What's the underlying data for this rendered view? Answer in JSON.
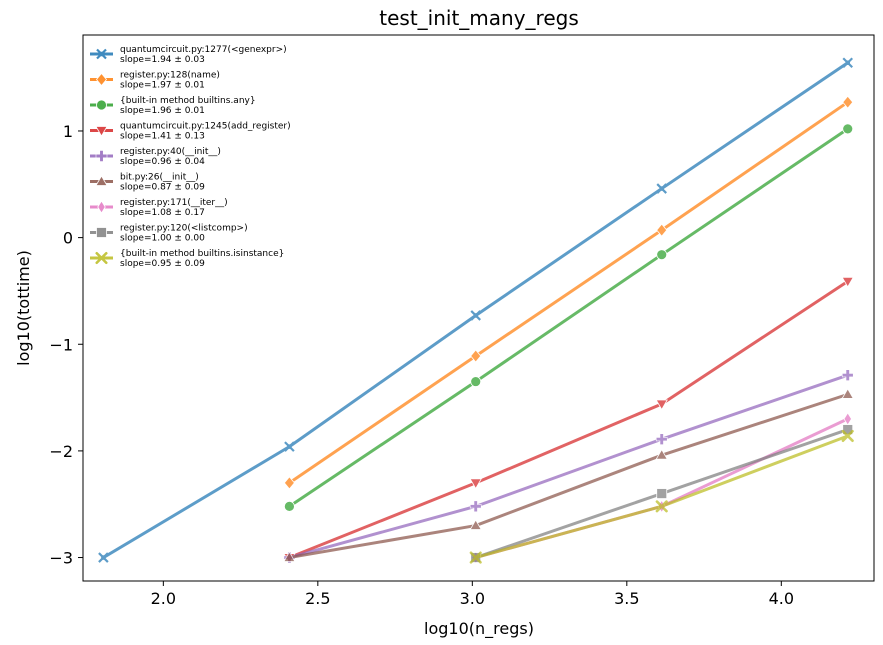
{
  "chart_data": {
    "type": "line",
    "title": "test_init_many_regs",
    "xlabel": "log10(n_regs)",
    "ylabel": "log10(tottime)",
    "xlim": [
      1.74,
      4.3
    ],
    "ylim": [
      -3.22,
      1.9
    ],
    "xticks": [
      2.0,
      2.5,
      3.0,
      3.5,
      4.0
    ],
    "xtick_labels": [
      "2.0",
      "2.5",
      "3.0",
      "3.5",
      "4.0"
    ],
    "yticks": [
      -3,
      -2,
      -1,
      0,
      1
    ],
    "ytick_labels": [
      "−3",
      "−2",
      "−1",
      "0",
      "1"
    ],
    "grid": false,
    "legend_position": "top-left",
    "series": [
      {
        "name": "quantumcircuit.py:1277(<genexpr>)",
        "slope": "slope=1.94 ± 0.03",
        "color": "#1f77b4",
        "marker": "x-star",
        "x": [
          1.806,
          2.408,
          3.011,
          3.613,
          4.215
        ],
        "y": [
          -3.0,
          -1.96,
          -0.73,
          0.46,
          1.64
        ]
      },
      {
        "name": "register.py:128(name)",
        "slope": "slope=1.97 ± 0.01",
        "color": "#ff7f0e",
        "marker": "diamond",
        "x": [
          2.408,
          3.011,
          3.613,
          4.215
        ],
        "y": [
          -2.3,
          -1.11,
          0.07,
          1.27
        ]
      },
      {
        "name": "{built-in method builtins.any}",
        "slope": "slope=1.96 ± 0.01",
        "color": "#2ca02c",
        "marker": "circle",
        "x": [
          2.408,
          3.011,
          3.613,
          4.215
        ],
        "y": [
          -2.52,
          -1.35,
          -0.16,
          1.02
        ]
      },
      {
        "name": "quantumcircuit.py:1245(add_register)",
        "slope": "slope=1.41 ± 0.13",
        "color": "#d62728",
        "marker": "triangle-down",
        "x": [
          2.408,
          3.011,
          3.613,
          4.215
        ],
        "y": [
          -3.0,
          -2.3,
          -1.56,
          -0.41
        ]
      },
      {
        "name": "register.py:40(__init__)",
        "slope": "slope=0.96 ± 0.04",
        "color": "#9467bd",
        "marker": "plus",
        "x": [
          2.408,
          3.011,
          3.613,
          4.215
        ],
        "y": [
          -3.0,
          -2.52,
          -1.89,
          -1.29
        ]
      },
      {
        "name": "bit.py:26(__init__)",
        "slope": "slope=0.87 ± 0.09",
        "color": "#8c564b",
        "marker": "triangle-up",
        "x": [
          2.408,
          3.011,
          3.613,
          4.215
        ],
        "y": [
          -3.0,
          -2.7,
          -2.04,
          -1.47
        ]
      },
      {
        "name": "register.py:171(__iter__)",
        "slope": "slope=1.08 ± 0.17",
        "color": "#e377c2",
        "marker": "diamond-thin",
        "x": [
          3.011,
          3.613,
          4.215
        ],
        "y": [
          -3.0,
          -2.52,
          -1.7
        ]
      },
      {
        "name": "register.py:120(<listcomp>)",
        "slope": "slope=1.00 ± 0.00",
        "color": "#7f7f7f",
        "marker": "square",
        "x": [
          3.011,
          3.613,
          4.215
        ],
        "y": [
          -3.0,
          -2.4,
          -1.8
        ]
      },
      {
        "name": "{built-in method builtins.isinstance}",
        "slope": "slope=0.95 ± 0.09",
        "color": "#bcbd22",
        "marker": "x",
        "x": [
          3.011,
          3.613,
          4.215
        ],
        "y": [
          -3.0,
          -2.52,
          -1.86
        ]
      }
    ]
  }
}
